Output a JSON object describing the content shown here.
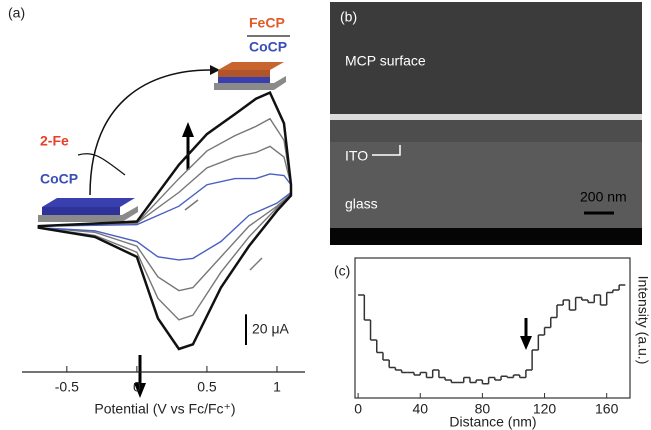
{
  "chart_data": [
    {
      "type": "line",
      "panel_label": "(a)",
      "xlabel": "Potential (V vs Fc/Fc⁺)",
      "xlim": [
        -0.82,
        1.2
      ],
      "xticks": [
        -0.5,
        0,
        0.5,
        1
      ],
      "ylim": [
        -95,
        90
      ],
      "x": [
        -0.7,
        0,
        0.3,
        0.5,
        0.7,
        0.85,
        0.95,
        1.05,
        1.1,
        1.1,
        1.0,
        0.8,
        0.6,
        0.4,
        0.3,
        0.15,
        0,
        -0.3,
        -0.7
      ],
      "series": [
        {
          "color": "#777777",
          "values": [
            0,
            2,
            22,
            38,
            45,
            48,
            52,
            45,
            27,
            21,
            13,
            0,
            -20,
            -40,
            -42,
            -33,
            -13,
            -4,
            -1
          ]
        },
        {
          "color": "#777777",
          "values": [
            0,
            2,
            31,
            49,
            59,
            65,
            70,
            56,
            27,
            21,
            12,
            -7,
            -30,
            -58,
            -61,
            -47,
            -17,
            -6,
            -1
          ]
        },
        {
          "color": "#4a5fc1",
          "values": [
            0,
            1,
            13,
            27,
            31,
            31,
            34,
            33,
            27,
            22,
            15,
            7,
            -10,
            -21,
            -22,
            -20,
            -10,
            -3,
            -1
          ]
        },
        {
          "color": "#111111",
          "values": [
            0,
            3,
            40,
            60,
            73,
            83,
            87,
            67,
            27,
            20,
            10,
            -13,
            -40,
            -77,
            -80,
            -60,
            -20,
            -7,
            -1
          ]
        }
      ],
      "scale_bar": {
        "value": 20,
        "label": "20 μA"
      },
      "annotations": [
        "CoCP",
        "2-Fe",
        "FeCP",
        "CoCP"
      ]
    },
    {
      "type": "step",
      "panel_label": "(c)",
      "xlabel": "Distance  (nm)",
      "ylabel": "Intensity (a.u.)",
      "xlim": [
        -2,
        175
      ],
      "xticks": [
        0,
        40,
        80,
        120,
        160
      ],
      "ylim": [
        0,
        100
      ],
      "x": [
        0,
        4,
        8,
        12,
        16,
        20,
        24,
        28,
        32,
        36,
        40,
        44,
        48,
        52,
        56,
        60,
        64,
        68,
        72,
        76,
        80,
        84,
        88,
        92,
        96,
        100,
        104,
        108,
        112,
        116,
        120,
        124,
        128,
        132,
        136,
        140,
        144,
        148,
        152,
        156,
        160,
        164,
        168
      ],
      "values": [
        80,
        60,
        44,
        34,
        28,
        22,
        20,
        18,
        18,
        16,
        18,
        14,
        20,
        14,
        12,
        10,
        10,
        14,
        10,
        12,
        9,
        14,
        12,
        15,
        14,
        16,
        14,
        20,
        36,
        48,
        54,
        62,
        72,
        76,
        68,
        78,
        76,
        74,
        80,
        72,
        82,
        84,
        88
      ],
      "color": "#333333"
    }
  ],
  "sem_image": {
    "panel_label": "(b)",
    "labels": [
      "MCP surface",
      "ITO",
      "glass"
    ],
    "scale_bar": "200 nm"
  }
}
